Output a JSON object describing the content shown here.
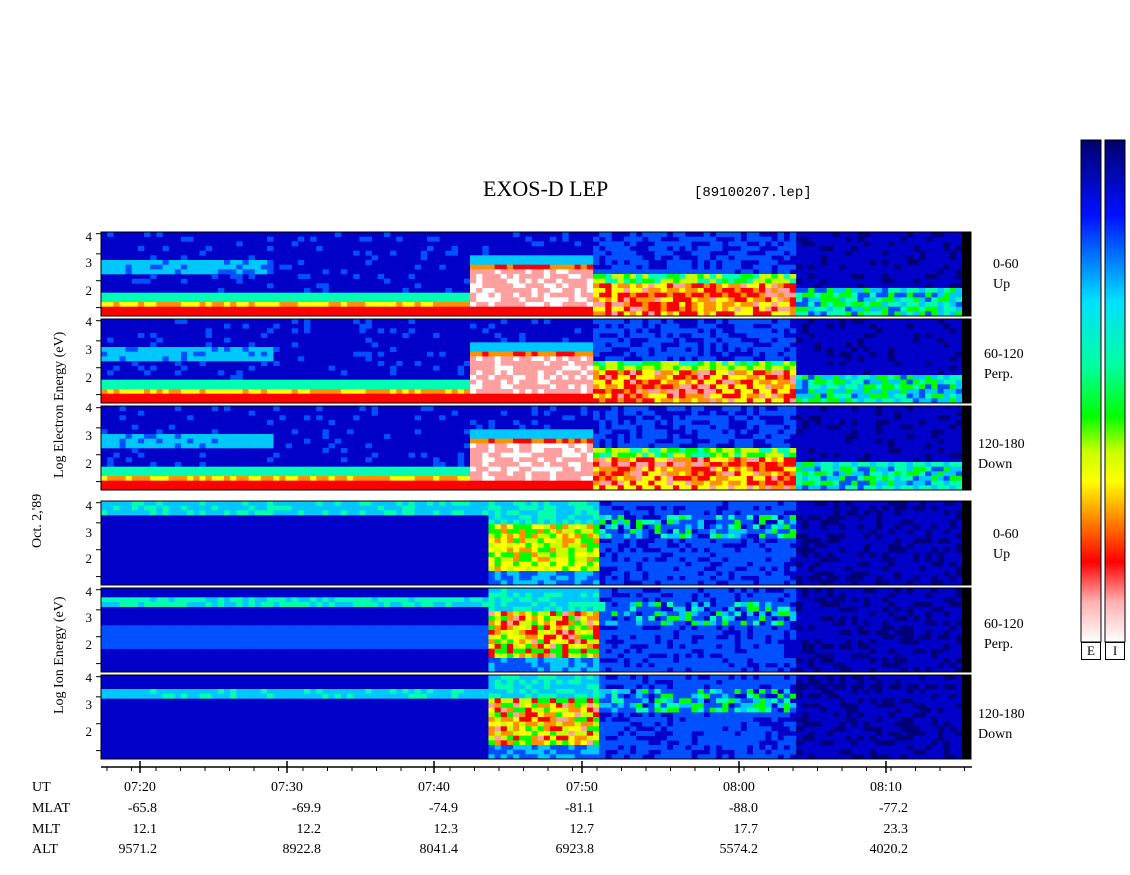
{
  "header": {
    "title": "EXOS-D LEP",
    "file": "[89100207.lep]"
  },
  "chart_data": {
    "type": "heatmap",
    "title": "EXOS-D LEP",
    "x_axis": {
      "ticks": [
        "07:20",
        "07:30",
        "07:40",
        "07:50",
        "08:00",
        "08:10"
      ]
    },
    "y_ticks": [
      "4",
      "3",
      "2"
    ],
    "y_ticks_lower": [
      "4",
      "3",
      "2"
    ],
    "electron_ylabel": "Log  Electron  Energy (eV)",
    "ion_ylabel": "Log  Ion  Energy (eV)",
    "date_label": "Oct. 2,'89",
    "panels": [
      {
        "species": "electron",
        "label1": "0-60",
        "label2": "Up"
      },
      {
        "species": "electron",
        "label1": "60-120",
        "label2": "Perp."
      },
      {
        "species": "electron",
        "label1": "120-180",
        "label2": "Down"
      },
      {
        "species": "ion",
        "label1": "0-60",
        "label2": "Up"
      },
      {
        "species": "ion",
        "label1": "60-120",
        "label2": "Perp."
      },
      {
        "species": "ion",
        "label1": "120-180",
        "label2": "Down"
      }
    ],
    "colorbars": [
      {
        "label": "E"
      },
      {
        "label": "I"
      }
    ],
    "ephemeris": {
      "labels": [
        "UT",
        "MLAT",
        "MLT",
        "ALT"
      ],
      "mlat": [
        "-65.8",
        "-69.9",
        "-74.9",
        "-81.1",
        "-88.0",
        "-77.2"
      ],
      "mlt": [
        "12.1",
        "12.2",
        "12.3",
        "12.7",
        "17.7",
        "23.3"
      ],
      "alt": [
        "9571.2",
        "8922.8",
        "8041.4",
        "6923.8",
        "5574.2",
        "4020.2"
      ]
    },
    "palette": [
      "#00007a",
      "#0000c8",
      "#0050ff",
      "#00c8ff",
      "#00ffb0",
      "#00ff00",
      "#c8ff00",
      "#ffff00",
      "#ff9000",
      "#ff0000",
      "#ffa0a0",
      "#ffffff"
    ]
  }
}
